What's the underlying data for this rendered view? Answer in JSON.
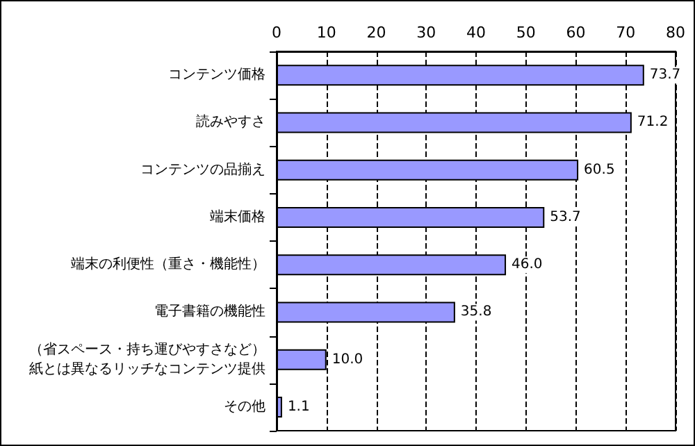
{
  "chart_data": {
    "type": "bar",
    "orientation": "horizontal",
    "categories": [
      "コンテンツ価格",
      "読みやすさ",
      "コンテンツの品揃え",
      "端末価格",
      "端末の利便性（重さ・機能性）",
      "電子書籍の機能性",
      "（省スペース・持ち運びやすさなど）紙とは異なるリッチなコンテンツ提供",
      "その他"
    ],
    "values": [
      73.7,
      71.2,
      60.5,
      53.7,
      46.0,
      35.8,
      10.0,
      1.1
    ],
    "value_labels": [
      "73.7",
      "71.2",
      "60.5",
      "53.7",
      "46.0",
      "35.8",
      "10.0",
      "1.1"
    ],
    "color": "#9999ff",
    "xlim": [
      0,
      80
    ],
    "xticks": [
      0,
      10,
      20,
      30,
      40,
      50,
      60,
      70,
      80
    ],
    "grid": "x"
  }
}
